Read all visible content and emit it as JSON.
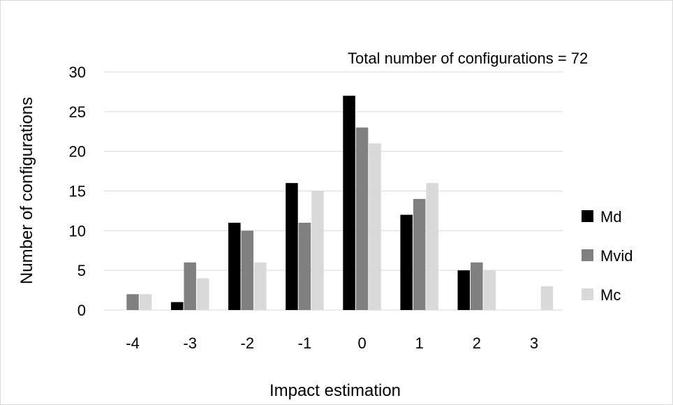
{
  "chart_data": {
    "type": "bar",
    "annotation": "Total number of configurations = 72",
    "xlabel": "Impact estimation",
    "ylabel": "Number of configurations",
    "categories": [
      "-4",
      "-3",
      "-2",
      "-1",
      "0",
      "1",
      "2",
      "3"
    ],
    "ylim": [
      0,
      30
    ],
    "yticks": [
      "0",
      "5",
      "10",
      "15",
      "20",
      "25",
      "30"
    ],
    "grid": true,
    "legend_position": "right",
    "series": [
      {
        "name": "Md",
        "color": "#000000",
        "values": [
          0,
          1,
          11,
          16,
          27,
          12,
          5,
          0
        ]
      },
      {
        "name": "Mvid",
        "color": "#808080",
        "values": [
          2,
          6,
          10,
          11,
          23,
          14,
          6,
          0
        ]
      },
      {
        "name": "Mc",
        "color": "#d9d9d9",
        "values": [
          2,
          4,
          6,
          15,
          21,
          16,
          5,
          3
        ]
      }
    ]
  }
}
